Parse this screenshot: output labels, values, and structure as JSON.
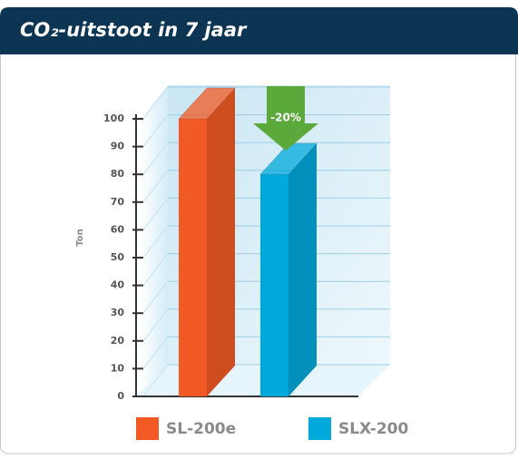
{
  "chart_data": {
    "type": "bar3d",
    "title": "CO₂-uitstoot in 7 jaar",
    "y_label": "Ton",
    "categories": [
      "SL-200e",
      "SLX-200"
    ],
    "values": [
      100,
      80
    ],
    "colors": [
      "#f15a24",
      "#00a9dc"
    ],
    "ylim": [
      0,
      100
    ],
    "yticks": [
      0,
      10,
      20,
      30,
      40,
      50,
      60,
      70,
      80,
      90,
      100
    ],
    "grid": true,
    "annotation": "-20%",
    "annotation_color": "#5aa93a",
    "legend": "bottom"
  }
}
